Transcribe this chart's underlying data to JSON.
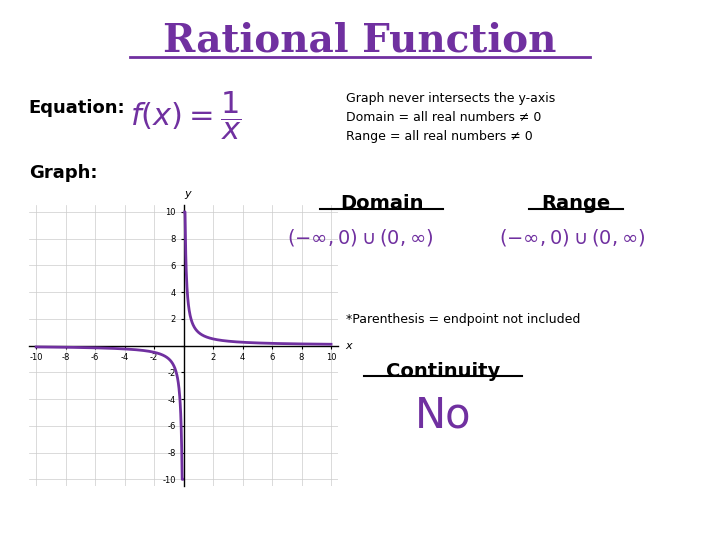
{
  "title": "Rational Function",
  "title_color": "#7030A0",
  "title_fontsize": 28,
  "bg_color": "#ffffff",
  "equation_label": "Equation:",
  "graph_label": "Graph:",
  "info_lines": [
    "Graph never intersects the y-axis",
    "Domain = all real numbers ≠ 0",
    "Range = all real numbers ≠ 0"
  ],
  "domain_label": "Domain",
  "range_label": "Range",
  "parenthesis_note": "*Parenthesis = endpoint not included",
  "continuity_label": "Continuity",
  "continuity_value": "No",
  "purple": "#7030A0",
  "graph_color": "#7030A0",
  "grid_color": "#cccccc"
}
